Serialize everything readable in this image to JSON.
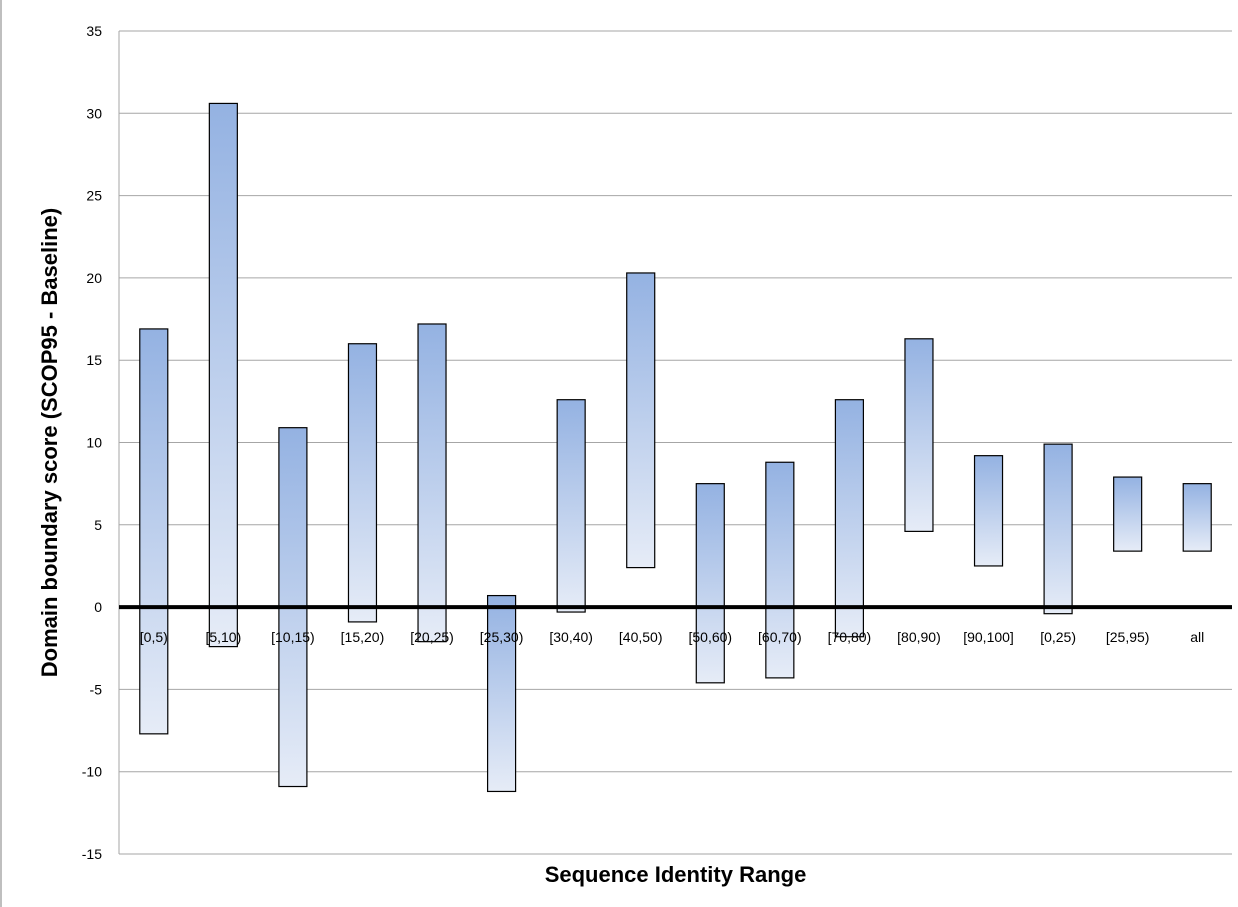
{
  "chart_data": {
    "type": "bar",
    "subtype": "floating-range",
    "title": "",
    "xlabel": "Sequence Identity Range",
    "ylabel": "Domain boundary score (SCOP95 - Baseline)",
    "ylim": [
      -15,
      35
    ],
    "yticks": [
      35,
      30,
      25,
      20,
      15,
      10,
      5,
      0,
      -5,
      -10,
      -15
    ],
    "grid": "horizontal",
    "legend": "none",
    "zero_line": true,
    "categories": [
      "[0,5)",
      "[5,10)",
      "[10,15)",
      "[15,20)",
      "[20,25)",
      "[25,30)",
      "[30,40)",
      "[40,50)",
      "[50,60)",
      "[60,70)",
      "[70,80)",
      "[80,90)",
      "[90,100]",
      "[0,25)",
      "[25,95)",
      "all"
    ],
    "series": [
      {
        "low": [
          -7.7,
          -2.4,
          -10.9,
          -0.9,
          -2.1,
          -11.2,
          -0.3,
          2.4,
          -4.6,
          -4.3,
          -1.8,
          4.6,
          2.5,
          -0.4,
          3.4,
          3.4
        ],
        "high": [
          16.9,
          30.6,
          10.9,
          16.0,
          17.2,
          0.7,
          12.6,
          20.3,
          7.5,
          8.8,
          12.6,
          16.3,
          9.2,
          9.9,
          7.9,
          7.5
        ]
      }
    ],
    "colors": {
      "bar_top": "#94b2e2",
      "bar_bottom": "#e6ecf7",
      "bar_border": "#000000",
      "grid": "#a6a6a6",
      "zero_line": "#000000"
    }
  }
}
